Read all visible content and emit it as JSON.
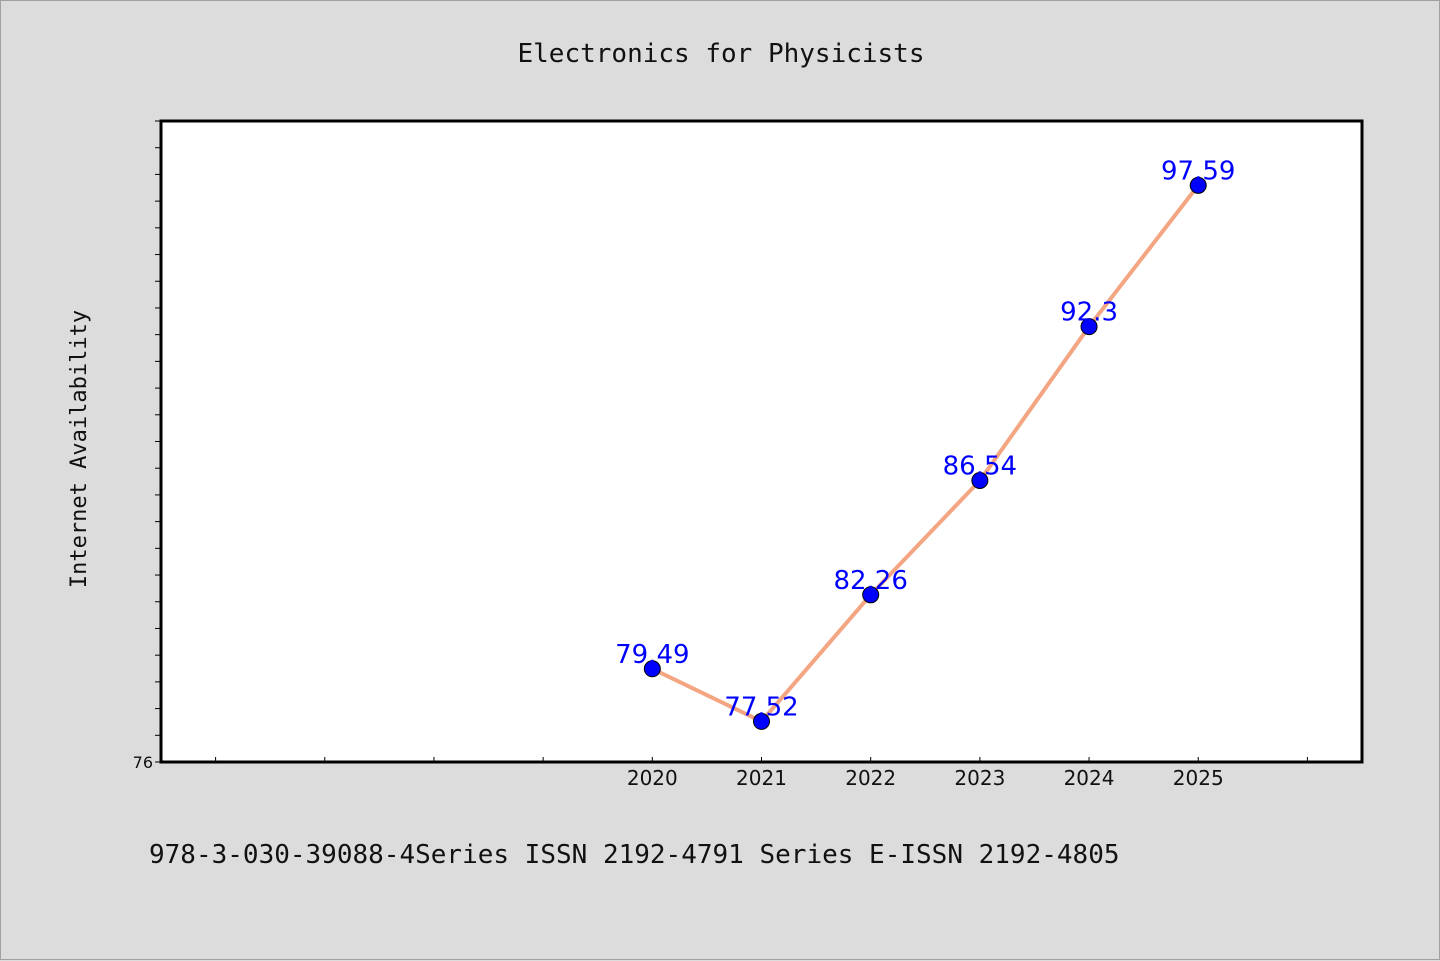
{
  "chart_data": {
    "type": "line",
    "title": "Electronics for Physicists",
    "xlabel": "",
    "ylabel": "Internet Availability",
    "x": [
      2020,
      2021,
      2022,
      2023,
      2024,
      2025
    ],
    "xlim": [
      2015.5,
      2026.5
    ],
    "x_tick_labels": [
      "2020",
      "2021",
      "2022",
      "2023",
      "2024",
      "2025"
    ],
    "ylim": [
      76,
      100
    ],
    "y_tick_labels": [
      "76"
    ],
    "series": [
      {
        "values": [
          79.49,
          77.52,
          82.26,
          86.54,
          92.3,
          97.59
        ]
      }
    ],
    "data_labels": [
      "79.49",
      "77.52",
      "82.26",
      "86.54",
      "92.3",
      "97.59"
    ],
    "grid": false,
    "legend": "none",
    "colors": {
      "line": "#f4a582",
      "marker": "#0000ff",
      "data_label": "#0000ff",
      "plot_background": "#ffffff",
      "figure_background": "#dcdcdc"
    }
  },
  "footer": {
    "text": "978-3-030-39088-4Series ISSN 2192-4791 Series E-ISSN 2192-4805"
  }
}
